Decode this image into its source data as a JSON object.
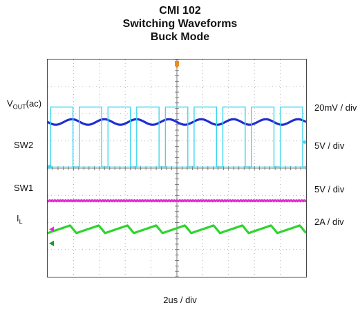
{
  "title": [
    "CMI 102",
    "Switching Waveforms",
    "Buck Mode"
  ],
  "xlabel": "2us / div",
  "chart_data": {
    "type": "line",
    "title": "CMI 102 Switching Waveforms Buck Mode",
    "xlabel": "2us / div",
    "x_divisions": 10,
    "y_divisions": 8,
    "grid": true,
    "series": [
      {
        "name": "VOUT(ac)",
        "label_main": "V",
        "label_sub": "OUT",
        "label_suffix": "(ac)",
        "scale": "20mV / div",
        "color": "#1f2fd1",
        "shape": "ripple",
        "level_div": 2.3,
        "amplitude_div": 0.1,
        "cycles": 8
      },
      {
        "name": "SW2",
        "label_main": "SW2",
        "scale": "5V / div",
        "color": "#3fd6ee",
        "shape": "square",
        "high_div": 1.75,
        "low_div": 3.95,
        "cycles": 9,
        "duty": 0.78
      },
      {
        "name": "SW1",
        "label_main": "SW1",
        "scale": "5V / div",
        "color": "#e62ad6",
        "shape": "flat",
        "level_div": 5.2,
        "amplitude_div": 0.02
      },
      {
        "name": "IL",
        "label_main": "I",
        "label_sub": "L",
        "scale": "2A / div",
        "color": "#2ed42e",
        "shape": "triangle",
        "level_div": 6.25,
        "amplitude_div": 0.14,
        "cycles": 9
      }
    ]
  }
}
